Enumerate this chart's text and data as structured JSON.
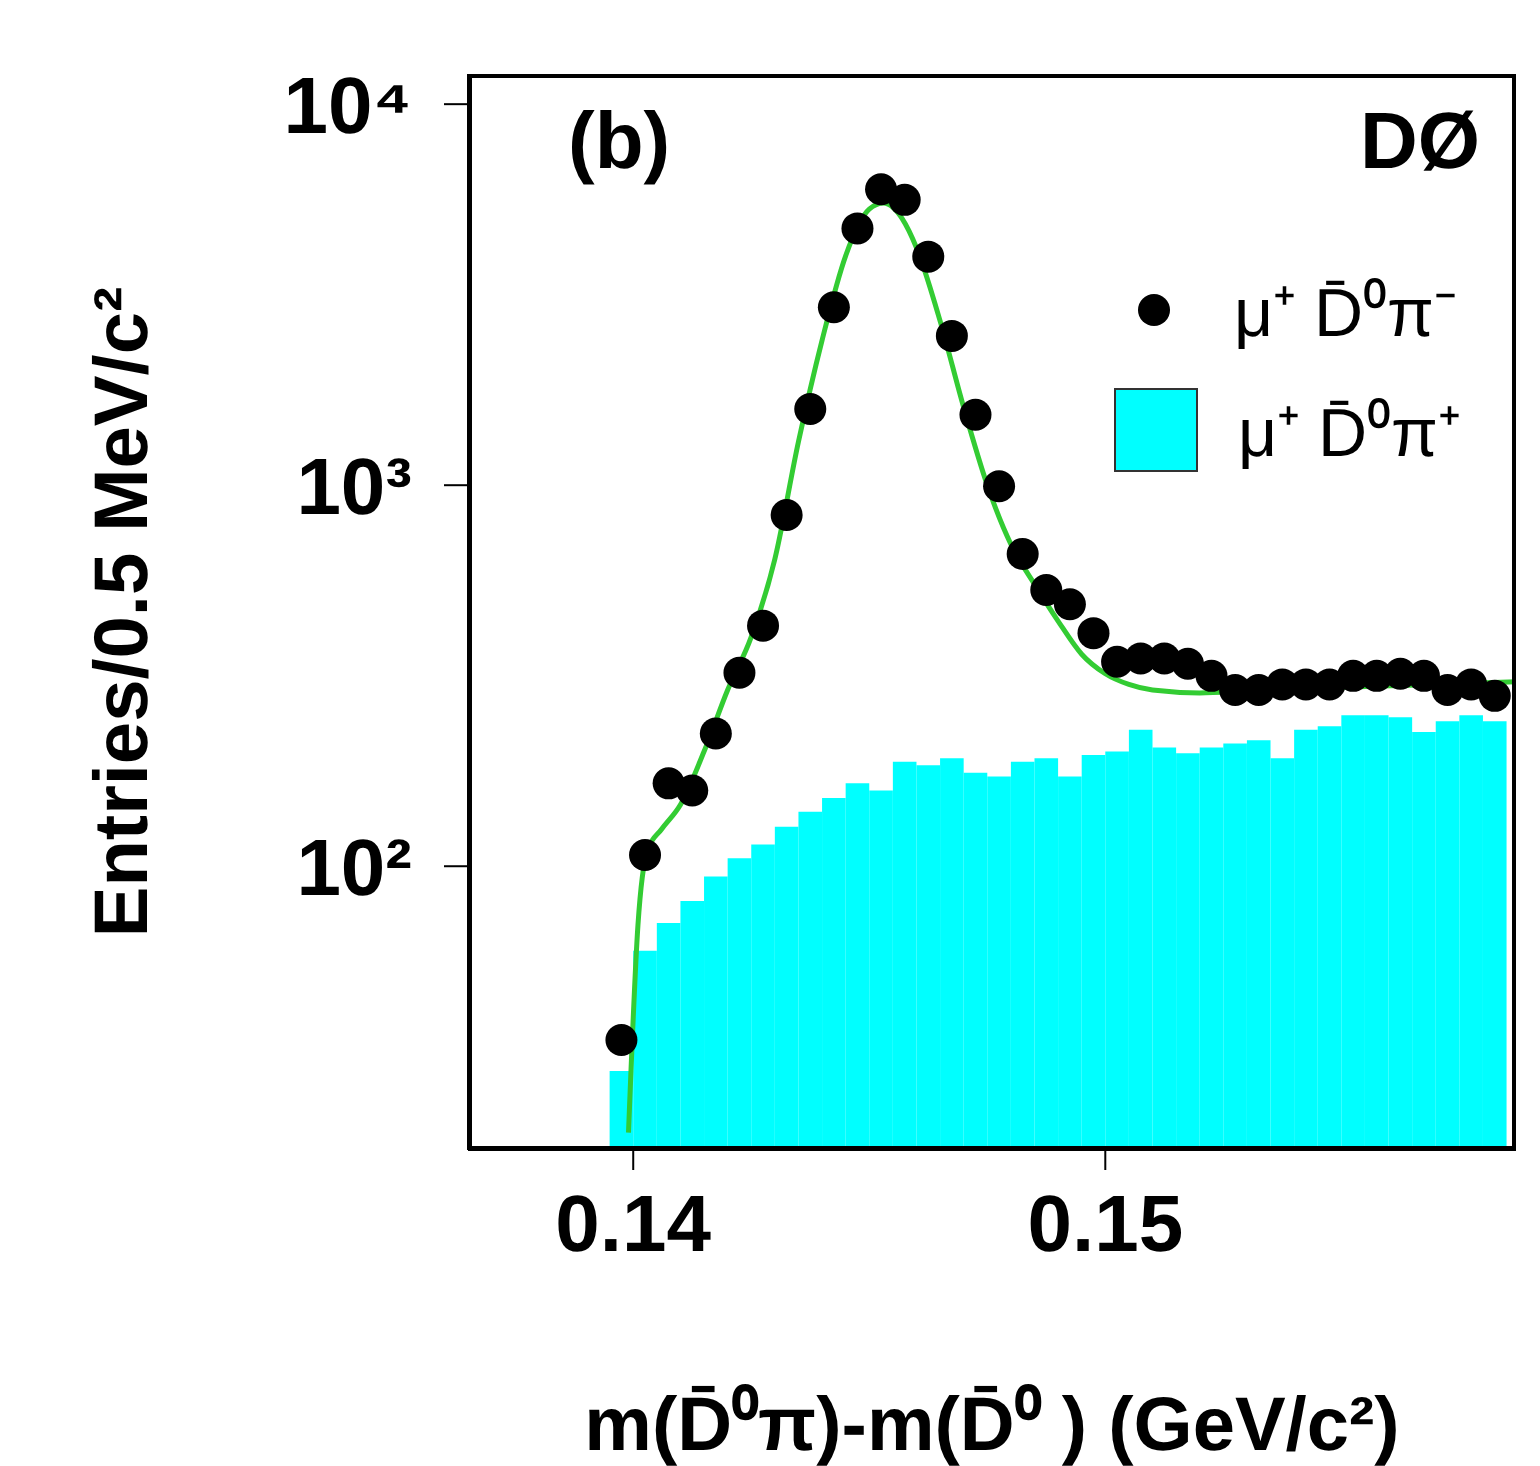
{
  "chart_data": {
    "type": "scatter",
    "xlabel": "m(D̄⁰π)-m(D̄⁰ ) (GeV/c²)",
    "ylabel": "Entries/0.5 MeV/c²",
    "annotations": [
      "(b)",
      "DØ"
    ],
    "xlim": [
      0.1365,
      0.1587
    ],
    "xticks": [
      0.14,
      0.15
    ],
    "ylim": [
      18,
      12000
    ],
    "yticks": [
      {
        "value": 100,
        "label": "10²"
      },
      {
        "value": 1000,
        "label": "10³"
      },
      {
        "value": 10000,
        "label": "10⁴"
      }
    ],
    "log": "y",
    "legend": "top right",
    "series": [
      {
        "name": "μ⁺ D̄⁰π⁺",
        "type": "histogram",
        "color": "#00ffff",
        "bins": [
          0.1395,
          0.14,
          0.1405,
          0.141,
          0.1415,
          0.142,
          0.1425,
          0.143,
          0.1435,
          0.144,
          0.1445,
          0.145,
          0.1455,
          0.146,
          0.1465,
          0.147,
          0.1475,
          0.148,
          0.1485,
          0.149,
          0.1495,
          0.15,
          0.1505,
          0.151,
          0.1515,
          0.152,
          0.1525,
          0.153,
          0.1535,
          0.154,
          0.1545,
          0.155,
          0.1555,
          0.156,
          0.1565,
          0.157,
          0.1575,
          0.158,
          0.1585
        ],
        "values": [
          29,
          60,
          71,
          81,
          94,
          105,
          114,
          127,
          139,
          151,
          165,
          158,
          188,
          184,
          192,
          176,
          172,
          188,
          192,
          172,
          196,
          200,
          228,
          205,
          198,
          205,
          210,
          214,
          192,
          228,
          233,
          249,
          249,
          246,
          225,
          240,
          249,
          240
        ]
      },
      {
        "type": "line",
        "color": "#33cc33",
        "x": [
          0.1399,
          0.1401,
          0.1403,
          0.1406,
          0.141,
          0.1415,
          0.142,
          0.1425,
          0.143,
          0.1435,
          0.144,
          0.1445,
          0.145,
          0.1453,
          0.1457,
          0.146,
          0.1465,
          0.147,
          0.1475,
          0.148,
          0.1485,
          0.149,
          0.1495,
          0.15,
          0.1505,
          0.151,
          0.152,
          0.153,
          0.155,
          0.157,
          0.1587
        ],
        "values": [
          20,
          70,
          110,
          125,
          145,
          200,
          290,
          400,
          640,
          1300,
          2400,
          4000,
          5300,
          5500,
          5000,
          4200,
          2700,
          1600,
          1000,
          700,
          550,
          440,
          360,
          320,
          300,
          290,
          285,
          288,
          295,
          300,
          305
        ]
      },
      {
        "name": "μ⁺ D̄⁰π⁻",
        "marker": "circle",
        "color": "#000000",
        "x": [
          0.13975,
          0.14025,
          0.14075,
          0.14125,
          0.14175,
          0.14225,
          0.14275,
          0.14325,
          0.14375,
          0.14425,
          0.14475,
          0.14525,
          0.14575,
          0.14625,
          0.14675,
          0.14725,
          0.14775,
          0.14825,
          0.14875,
          0.14925,
          0.14975,
          0.15025,
          0.15075,
          0.15125,
          0.15175,
          0.15225,
          0.15275,
          0.15325,
          0.15375,
          0.15425,
          0.15475,
          0.15525,
          0.15575,
          0.15625,
          0.15675,
          0.15725,
          0.15775,
          0.15825
        ],
        "values": [
          35,
          107,
          165,
          158,
          223,
          322,
          428,
          835,
          1585,
          2930,
          4720,
          5980,
          5610,
          3980,
          2465,
          1531,
          994,
          660,
          531,
          487,
          409,
          344,
          351,
          351,
          340,
          316,
          290,
          290,
          300,
          300,
          300,
          316,
          316,
          320,
          316,
          290,
          300,
          280
        ]
      }
    ]
  }
}
